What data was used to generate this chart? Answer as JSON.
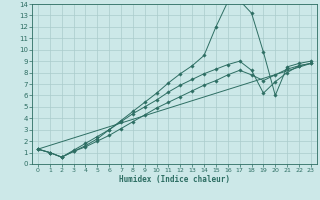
{
  "title": "",
  "xlabel": "Humidex (Indice chaleur)",
  "bg_color": "#cce8e8",
  "grid_color": "#aacccc",
  "line_color": "#2d6e63",
  "xlim": [
    -0.5,
    23.5
  ],
  "ylim": [
    0,
    14
  ],
  "xticks": [
    0,
    1,
    2,
    3,
    4,
    5,
    6,
    7,
    8,
    9,
    10,
    11,
    12,
    13,
    14,
    15,
    16,
    17,
    18,
    19,
    20,
    21,
    22,
    23
  ],
  "yticks": [
    0,
    1,
    2,
    3,
    4,
    5,
    6,
    7,
    8,
    9,
    10,
    11,
    12,
    13,
    14
  ],
  "series": [
    {
      "x": [
        0,
        1,
        2,
        3,
        4,
        5,
        6,
        7,
        8,
        9,
        10,
        11,
        12,
        13,
        14,
        15,
        16,
        17,
        18,
        19,
        20,
        21,
        22,
        23
      ],
      "y": [
        1.3,
        1.0,
        0.6,
        1.1,
        1.6,
        2.2,
        3.0,
        3.8,
        4.6,
        5.4,
        6.2,
        7.1,
        7.9,
        8.6,
        9.5,
        12.0,
        14.2,
        14.3,
        13.2,
        9.8,
        6.0,
        8.5,
        8.8,
        9.0
      ],
      "has_markers": true
    },
    {
      "x": [
        0,
        1,
        2,
        3,
        4,
        5,
        6,
        7,
        8,
        9,
        10,
        11,
        12,
        13,
        14,
        15,
        16,
        17,
        18,
        19,
        20,
        21,
        22,
        23
      ],
      "y": [
        1.3,
        1.0,
        0.6,
        1.2,
        1.8,
        2.4,
        3.0,
        3.7,
        4.4,
        5.0,
        5.6,
        6.3,
        6.9,
        7.4,
        7.9,
        8.3,
        8.7,
        9.0,
        8.2,
        6.2,
        7.2,
        8.0,
        8.6,
        8.8
      ],
      "has_markers": true
    },
    {
      "x": [
        0,
        1,
        2,
        3,
        4,
        5,
        6,
        7,
        8,
        9,
        10,
        11,
        12,
        13,
        14,
        15,
        16,
        17,
        18,
        19,
        20,
        21,
        22,
        23
      ],
      "y": [
        1.3,
        1.0,
        0.6,
        1.1,
        1.5,
        2.0,
        2.5,
        3.1,
        3.7,
        4.3,
        4.9,
        5.4,
        5.9,
        6.4,
        6.9,
        7.3,
        7.8,
        8.2,
        7.8,
        7.3,
        7.8,
        8.3,
        8.6,
        8.8
      ],
      "has_markers": true
    },
    {
      "x": [
        0,
        23
      ],
      "y": [
        1.3,
        8.8
      ],
      "has_markers": false
    }
  ]
}
